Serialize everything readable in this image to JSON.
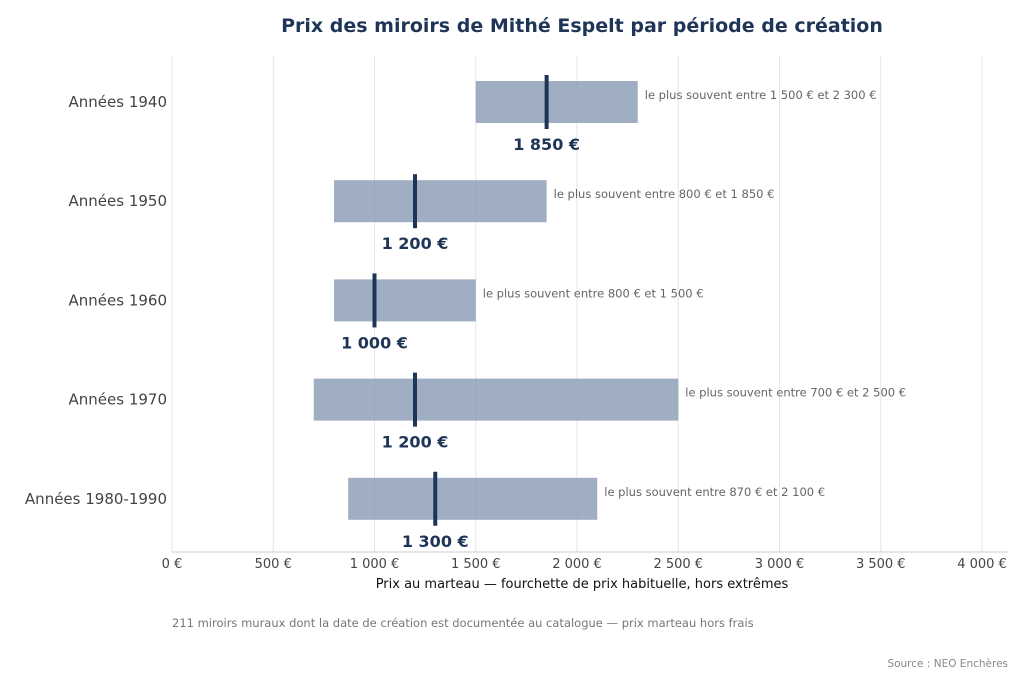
{
  "chart_data": {
    "type": "bar",
    "title": "Prix des miroirs de Mithé Espelt par période de création",
    "xlabel": "Prix au marteau — fourchette de prix habituelle, hors extrêmes",
    "xlim": [
      0,
      4000
    ],
    "xticks": [
      0,
      500,
      1000,
      1500,
      2000,
      2500,
      3000,
      3500,
      4000
    ],
    "xtick_labels": [
      "0 €",
      "500 €",
      "1 000 €",
      "1 500 €",
      "2 000 €",
      "2 500 €",
      "3 000 €",
      "3 500 €",
      "4 000 €"
    ],
    "grid": "vertical",
    "colors": {
      "bar": "#8597b3",
      "median": "#1f3557",
      "title": "#1f3557"
    },
    "categories": [
      "Années 1940",
      "Années 1950",
      "Années 1960",
      "Années 1970",
      "Années 1980-1990"
    ],
    "low": [
      1500,
      800,
      800,
      700,
      870
    ],
    "high": [
      2300,
      1850,
      1500,
      2500,
      2100
    ],
    "median": [
      1850,
      1200,
      1000,
      1200,
      1300
    ],
    "median_labels": [
      "1 850 €",
      "1 200 €",
      "1 000 €",
      "1 200 €",
      "1 300 €"
    ],
    "range_labels": [
      "le plus souvent entre 1 500 € et 2 300 €",
      "le plus souvent entre 800 € et 1 850 €",
      "le plus souvent entre 800 € et 1 500 €",
      "le plus souvent entre 700 € et 2 500 €",
      "le plus souvent entre 870 € et 2 100 €"
    ],
    "note": "211 miroirs muraux dont la date de création est documentée au catalogue — prix marteau hors frais",
    "source": "Source : NEO Enchères"
  }
}
